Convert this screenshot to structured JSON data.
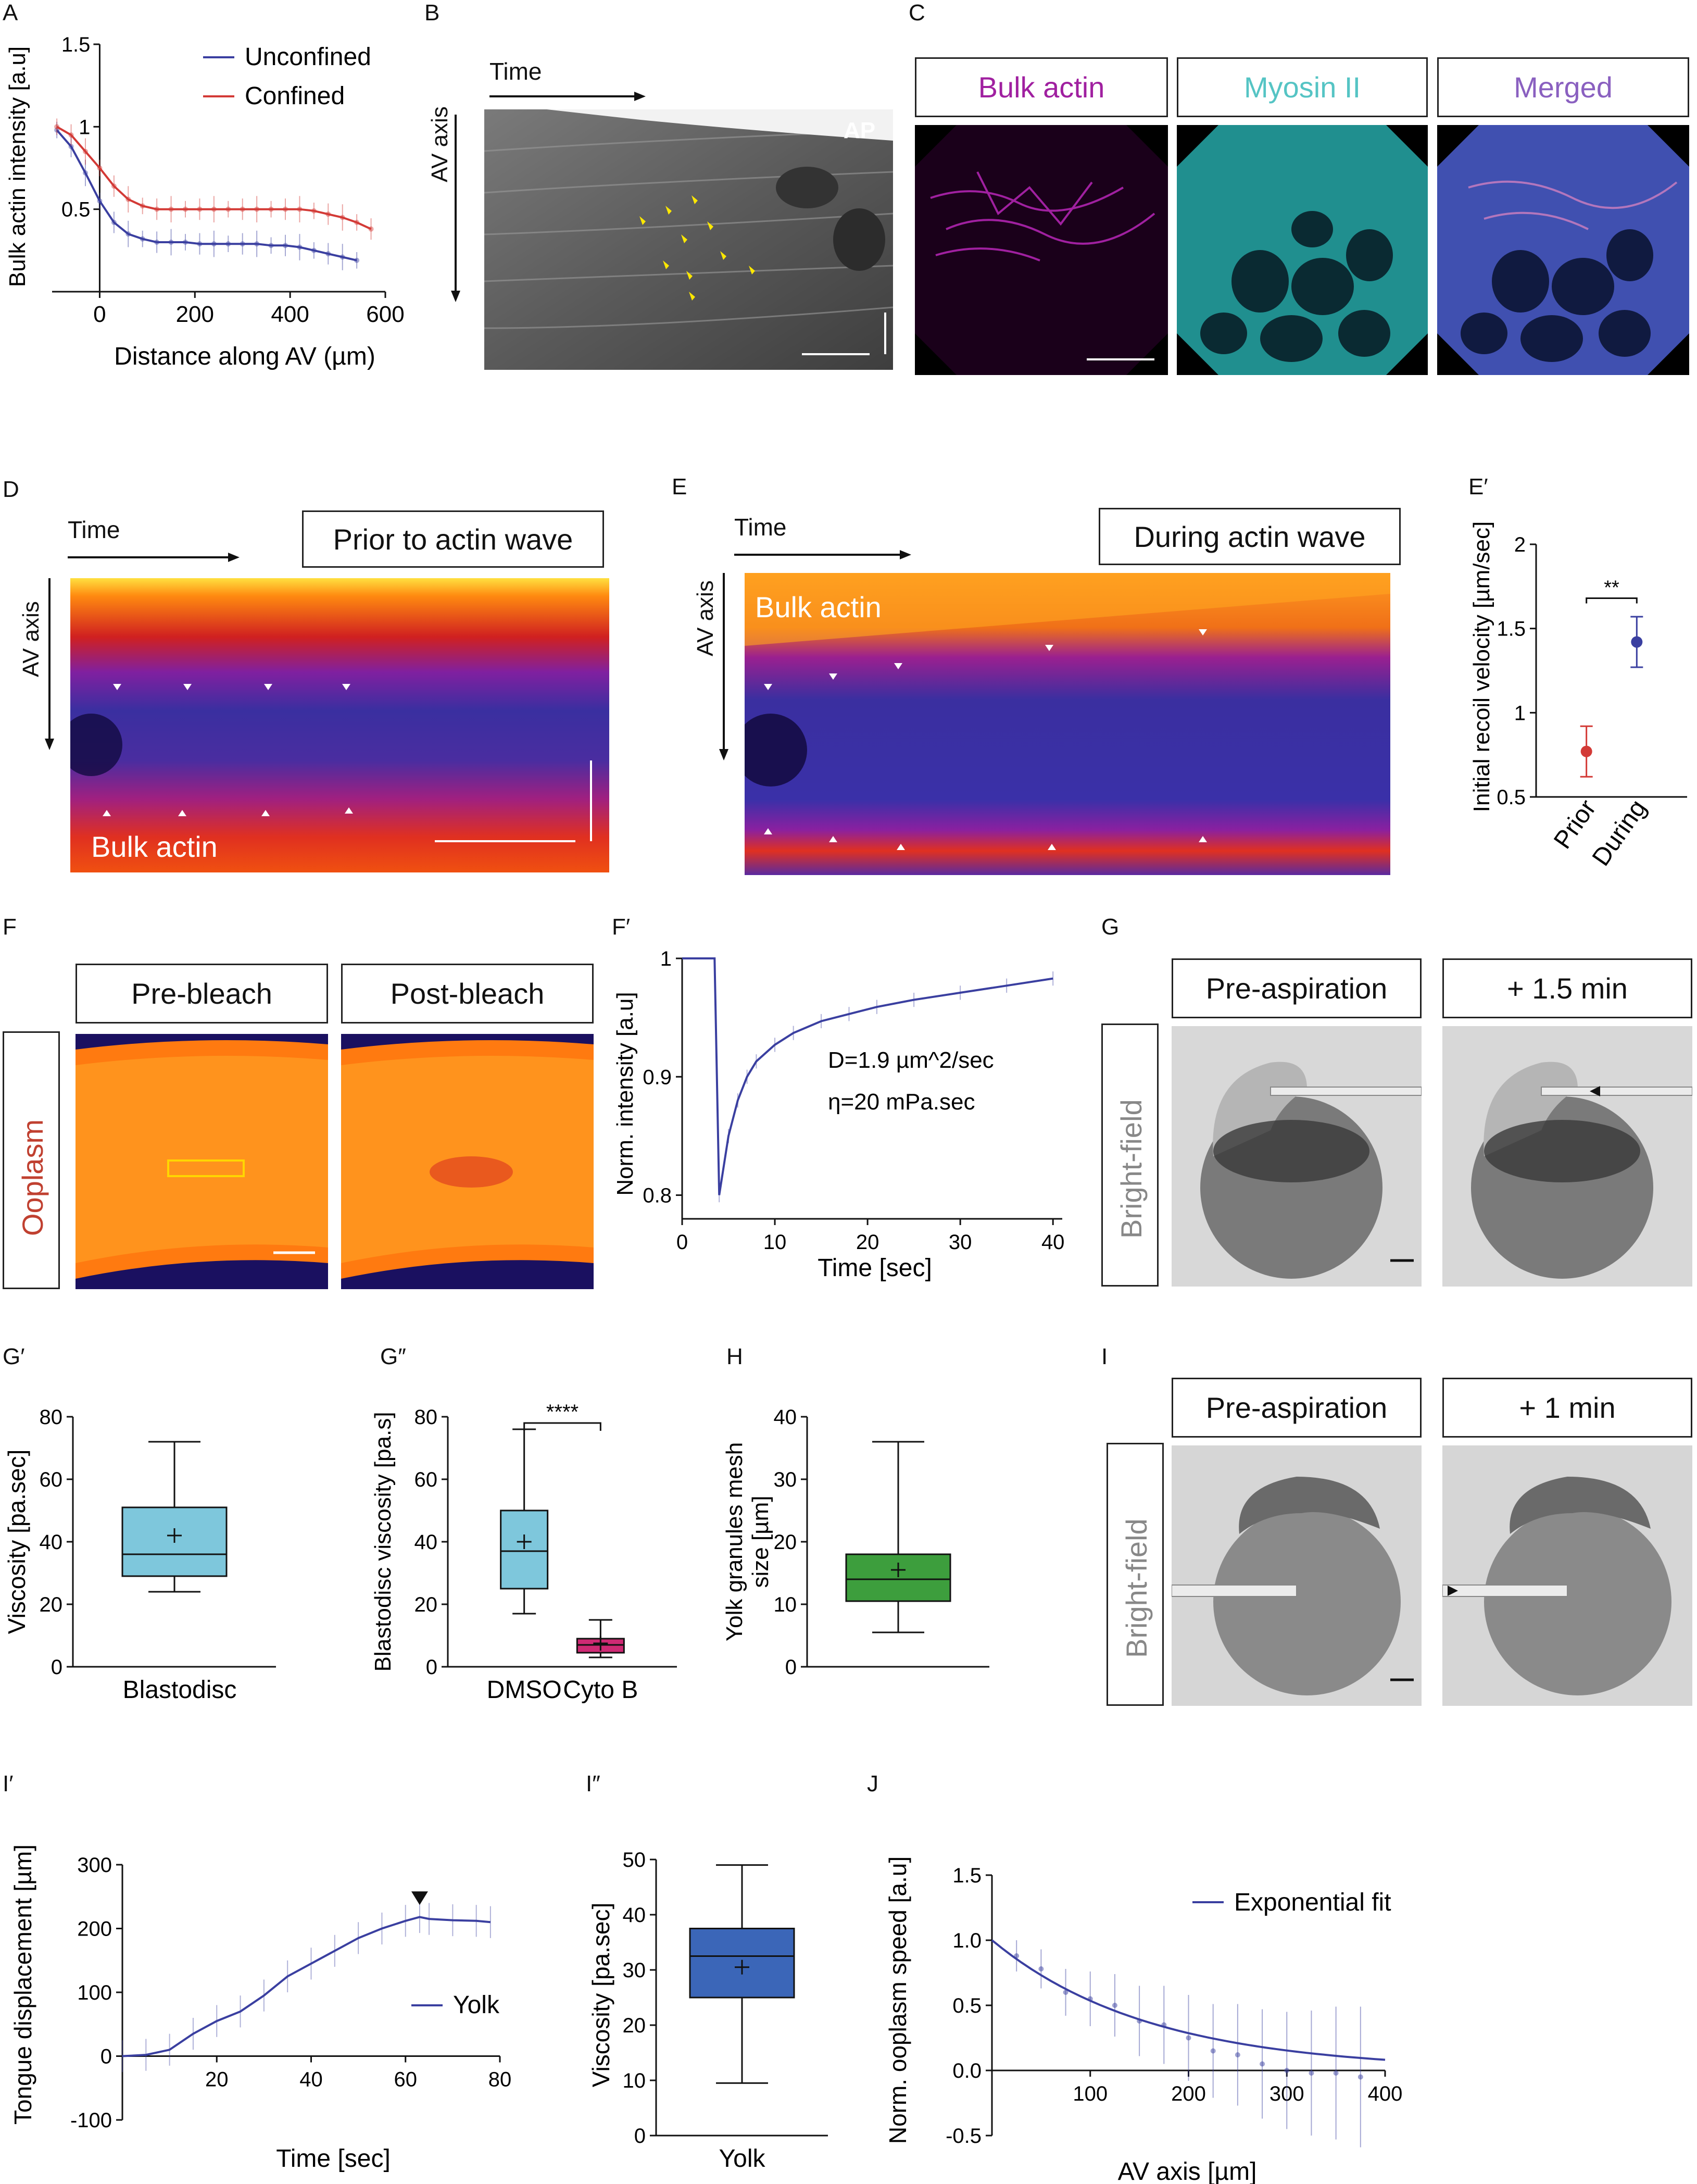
{
  "panel_labels": {
    "A": "A",
    "B": "B",
    "C": "C",
    "D": "D",
    "E": "E",
    "E_prime": "E′",
    "F": "F",
    "F_prime": "F′",
    "G": "G",
    "G_prime": "G′",
    "G_dprime": "G″",
    "H": "H",
    "I": "I",
    "I_prime": "I′",
    "I_dprime": "I″",
    "J": "J"
  },
  "panel_B": {
    "time_label": "Time",
    "axis_label": "AV axis",
    "corner_label": "AP"
  },
  "panel_C": {
    "box1": "Bulk actin",
    "box2": "Myosin II",
    "box3": "Merged"
  },
  "panel_D": {
    "time_label": "Time",
    "axis_label": "AV axis",
    "box": "Prior to actin wave",
    "image_label": "Bulk actin"
  },
  "panel_E": {
    "time_label": "Time",
    "axis_label": "AV axis",
    "box": "During actin wave",
    "image_label": "Bulk actin"
  },
  "panel_F": {
    "box1": "Pre-bleach",
    "box2": "Post-bleach",
    "side_label": "Ooplasm"
  },
  "panel_G": {
    "box1": "Pre-aspiration",
    "box2": "+ 1.5 min",
    "side_label": "Bright-field"
  },
  "panel_I": {
    "box1": "Pre-aspiration",
    "box2": "+ 1 min",
    "side_label": "Bright-field"
  },
  "chart_data": [
    {
      "panel": "A",
      "type": "line",
      "xlabel": "Distance along AV (µm)",
      "ylabel": "Bulk actin intensity [a.u]",
      "xlim": [
        -100,
        600
      ],
      "ylim": [
        0,
        1.5
      ],
      "xticks": [
        0,
        200,
        400,
        600
      ],
      "yticks": [
        0.5,
        1.0,
        1.5
      ],
      "legend_position": "top-right",
      "series": [
        {
          "name": "Unconfined",
          "color": "#3a3fa0",
          "x": [
            -90,
            -60,
            -30,
            0,
            30,
            60,
            90,
            120,
            150,
            180,
            210,
            240,
            270,
            300,
            330,
            360,
            390,
            420,
            450,
            480,
            510,
            540
          ],
          "y": [
            0.98,
            0.88,
            0.72,
            0.55,
            0.42,
            0.35,
            0.32,
            0.3,
            0.3,
            0.3,
            0.29,
            0.29,
            0.29,
            0.29,
            0.29,
            0.28,
            0.28,
            0.27,
            0.25,
            0.23,
            0.21,
            0.19
          ]
        },
        {
          "name": "Confined",
          "color": "#d33a36",
          "x": [
            -90,
            -60,
            -30,
            0,
            30,
            60,
            90,
            120,
            150,
            180,
            210,
            240,
            270,
            300,
            330,
            360,
            390,
            420,
            450,
            480,
            510,
            540,
            570
          ],
          "y": [
            1.0,
            0.95,
            0.85,
            0.75,
            0.64,
            0.56,
            0.52,
            0.5,
            0.5,
            0.5,
            0.5,
            0.5,
            0.5,
            0.5,
            0.5,
            0.5,
            0.5,
            0.5,
            0.49,
            0.47,
            0.45,
            0.42,
            0.38
          ]
        }
      ]
    },
    {
      "panel": "E′",
      "type": "scatter",
      "ylabel": "Initial recoil velocity [µm/sec]",
      "ylim": [
        0.5,
        2.0
      ],
      "yticks": [
        0.5,
        1.0,
        1.5,
        2.0
      ],
      "categories": [
        "Prior",
        "During"
      ],
      "values": [
        0.77,
        1.42
      ],
      "errors": [
        0.15,
        0.15
      ],
      "colors": [
        "#d33a36",
        "#3a3fa0"
      ],
      "annotation": "**"
    },
    {
      "panel": "F′",
      "type": "line",
      "xlabel": "Time [sec]",
      "ylabel": "Norm. intensity [a.u]",
      "xlim": [
        0,
        41
      ],
      "ylim": [
        0.78,
        1.0
      ],
      "xticks": [
        0,
        10,
        20,
        30,
        40
      ],
      "yticks": [
        0.8,
        0.9,
        1.0
      ],
      "annotations": [
        "D=1.9 µm^2/sec",
        "η=20 mPa.sec"
      ],
      "series": [
        {
          "color": "#3a3fa0",
          "x": [
            0,
            3.5,
            4.0,
            5,
            6,
            7,
            8,
            10,
            12,
            15,
            18,
            21,
            25,
            30,
            35,
            40
          ],
          "y": [
            1.0,
            1.0,
            0.8,
            0.85,
            0.88,
            0.9,
            0.913,
            0.927,
            0.937,
            0.947,
            0.953,
            0.959,
            0.965,
            0.971,
            0.977,
            0.983
          ]
        }
      ]
    },
    {
      "panel": "G′",
      "type": "box",
      "ylabel": "Viscosity [pa.sec]",
      "ylim": [
        0,
        80
      ],
      "yticks": [
        0,
        20,
        40,
        60,
        80
      ],
      "categories": [
        "Blastodisc"
      ],
      "boxes": [
        {
          "min": 24,
          "q1": 29,
          "median": 36,
          "q3": 51,
          "max": 72,
          "mean": 42,
          "color": "#7ec7dc"
        }
      ]
    },
    {
      "panel": "G″",
      "type": "box",
      "ylabel": "Blastodisc viscosity [pa.s]",
      "ylim": [
        0,
        80
      ],
      "yticks": [
        0,
        20,
        40,
        60,
        80
      ],
      "categories": [
        "DMSO",
        "Cyto B"
      ],
      "annotation": "****",
      "boxes": [
        {
          "min": 17,
          "q1": 25,
          "median": 37,
          "q3": 50,
          "max": 76,
          "mean": 40,
          "color": "#7ec7dc"
        },
        {
          "min": 3,
          "q1": 4.5,
          "median": 7,
          "q3": 9,
          "max": 15,
          "mean": 7.5,
          "color": "#cf2a74"
        }
      ]
    },
    {
      "panel": "H",
      "type": "box",
      "ylabel": "Yolk granules mesh size [µm]",
      "ylim": [
        0,
        40
      ],
      "yticks": [
        0,
        10,
        20,
        30,
        40
      ],
      "boxes": [
        {
          "min": 5.5,
          "q1": 10.5,
          "median": 14,
          "q3": 18,
          "max": 36,
          "mean": 15.5,
          "color": "#3d9e3d"
        }
      ]
    },
    {
      "panel": "I′",
      "type": "line",
      "xlabel": "Time [sec]",
      "ylabel": "Tongue displacement [µm]",
      "xlim": [
        0,
        80
      ],
      "ylim": [
        -100,
        300
      ],
      "xticks": [
        20,
        40,
        60,
        80
      ],
      "yticks": [
        -100,
        0,
        100,
        200,
        300
      ],
      "legend_position": "right",
      "series": [
        {
          "name": "Yolk",
          "color": "#3a3fa0",
          "x": [
            0,
            5,
            10,
            15,
            20,
            25,
            30,
            35,
            40,
            45,
            50,
            55,
            60,
            63,
            65,
            70,
            75,
            78
          ],
          "y": [
            0,
            2,
            10,
            35,
            55,
            70,
            95,
            125,
            145,
            165,
            185,
            200,
            212,
            218,
            215,
            213,
            212,
            210
          ]
        }
      ]
    },
    {
      "panel": "I″",
      "type": "box",
      "ylabel": "Viscosity [pa.sec]",
      "ylim": [
        0,
        50
      ],
      "yticks": [
        0,
        10,
        20,
        30,
        40,
        50
      ],
      "categories": [
        "Yolk"
      ],
      "boxes": [
        {
          "min": 9.5,
          "q1": 25,
          "median": 32.5,
          "q3": 37.5,
          "max": 49,
          "mean": 30.5,
          "color": "#3b66b8"
        }
      ]
    },
    {
      "panel": "J",
      "type": "scatter",
      "xlabel": "AV axis [µm]",
      "ylabel": "Norm. ooplasm speed [a.u]",
      "xlim": [
        0,
        400
      ],
      "ylim": [
        -0.5,
        1.5
      ],
      "xticks": [
        100,
        200,
        300,
        400
      ],
      "yticks": [
        -0.5,
        0.0,
        0.5,
        1.0,
        1.5
      ],
      "legend_position": "top-right",
      "series": [
        {
          "name": "Exponential fit",
          "color": "#3a3fa0",
          "x": [
            25,
            50,
            75,
            100,
            125,
            150,
            175,
            200,
            225,
            250,
            275,
            300,
            325,
            350,
            375
          ],
          "y": [
            0.88,
            0.78,
            0.6,
            0.55,
            0.5,
            0.38,
            0.35,
            0.25,
            0.15,
            0.12,
            0.05,
            0.0,
            -0.02,
            -0.02,
            -0.05
          ]
        }
      ]
    }
  ]
}
